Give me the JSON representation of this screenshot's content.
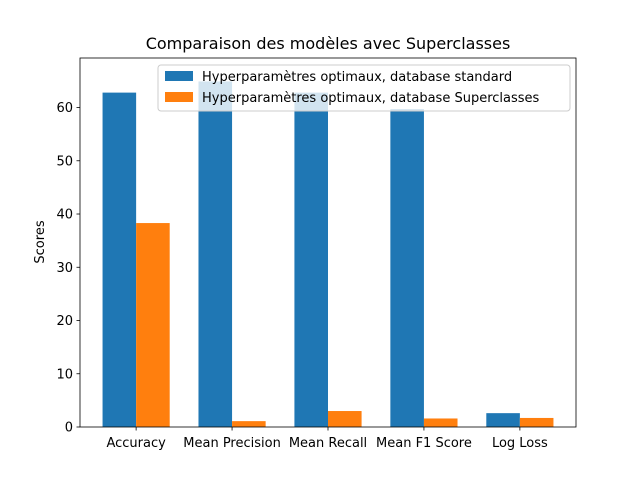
{
  "chart_data": {
    "type": "bar",
    "title": "Comparaison des modèles avec Superclasses",
    "xlabel": "",
    "ylabel": "Scores",
    "categories": [
      "Accuracy",
      "Mean Precision",
      "Mean Recall",
      "Mean F1 Score",
      "Log Loss"
    ],
    "series": [
      {
        "name": "Hyperparamètres optimaux, database standard",
        "values": [
          62.8,
          64.9,
          62.8,
          59.7,
          2.6
        ],
        "color": "#1f77b4"
      },
      {
        "name": "Hyperparamètres optimaux, database Superclasses",
        "values": [
          38.3,
          1.1,
          3.0,
          1.6,
          1.7
        ],
        "color": "#ff7f0e"
      }
    ],
    "ylim": [
      0,
      69.3
    ],
    "yticks": [
      0,
      10,
      20,
      30,
      40,
      50,
      60
    ],
    "grid": false,
    "legend_position": "top-right"
  }
}
